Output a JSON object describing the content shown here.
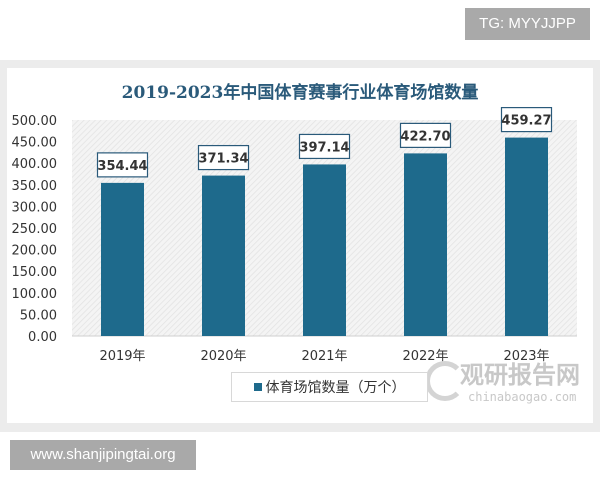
{
  "watermarks": {
    "tg": "TG: MYYJJPP",
    "site": "www.shanjipingtai.org",
    "brand_cn": "观研报告网",
    "brand_en": "chinabaogao.com"
  },
  "chart_data": {
    "type": "bar",
    "title": "2019-2023年中国体育赛事行业体育场馆数量",
    "categories": [
      "2019年",
      "2020年",
      "2021年",
      "2022年",
      "2023年"
    ],
    "series": [
      {
        "name": "体育场馆数量（万个）",
        "values": [
          354.44,
          371.34,
          397.14,
          422.7,
          459.27
        ],
        "color": "#1e6a8c"
      }
    ],
    "data_labels": [
      "354.44",
      "371.34",
      "397.14",
      "422.70",
      "459.27"
    ],
    "ylim": [
      0,
      500
    ],
    "yticks": [
      "0.00",
      "50.00",
      "100.00",
      "150.00",
      "200.00",
      "250.00",
      "300.00",
      "350.00",
      "400.00",
      "450.00",
      "500.00"
    ],
    "legend": "bottom",
    "grid": false
  }
}
